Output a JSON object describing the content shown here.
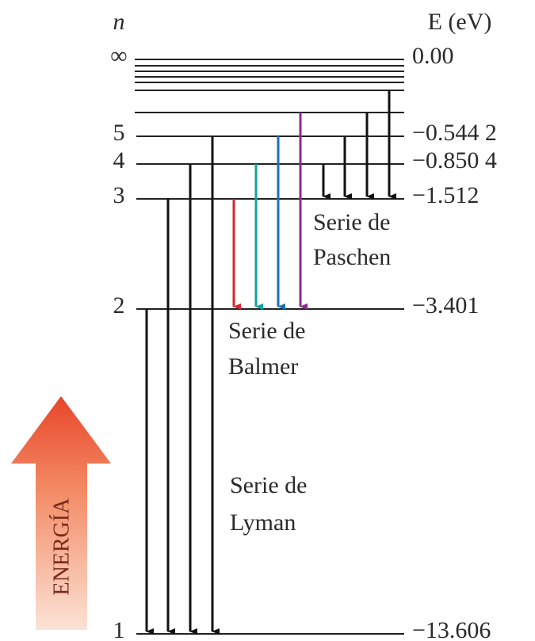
{
  "header": {
    "n": "n",
    "energy": "E (eV)"
  },
  "levels": [
    {
      "n": "∞",
      "energy": "0.00"
    },
    {
      "n": "5",
      "energy": "−0.544 2"
    },
    {
      "n": "4",
      "energy": "−0.850 4"
    },
    {
      "n": "3",
      "energy": "−1.512"
    },
    {
      "n": "2",
      "energy": "−3.401"
    },
    {
      "n": "1",
      "energy": "−13.606"
    }
  ],
  "series": [
    {
      "line1": "Serie de",
      "line2": "Paschen"
    },
    {
      "line1": "Serie de",
      "line2": "Balmer"
    },
    {
      "line1": "Serie de",
      "line2": "Lyman"
    }
  ],
  "energy_arrow": "ENERGÍA"
}
